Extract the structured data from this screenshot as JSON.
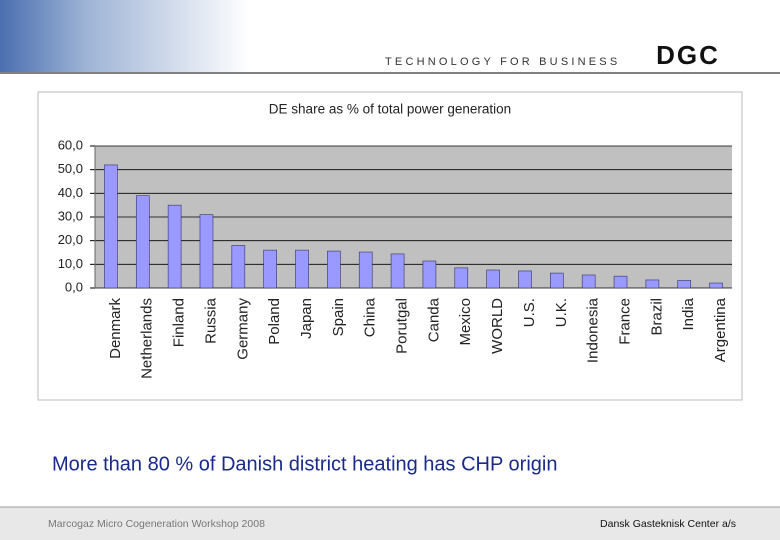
{
  "header": {
    "tagline": "TECHNOLOGY FOR BUSINESS",
    "logo": "DGC"
  },
  "chart_data": {
    "type": "bar",
    "title": "DE share as % of total power generation",
    "categories": [
      "Denmark",
      "Netherlands",
      "Finland",
      "Russia",
      "Germany",
      "Poland",
      "Japan",
      "Spain",
      "China",
      "Porutgal",
      "Canda",
      "Mexico",
      "WORLD",
      "U.S.",
      "U.K.",
      "Indonesia",
      "France",
      "Brazil",
      "India",
      "Argentina"
    ],
    "values": [
      52,
      39,
      35,
      31,
      18,
      16,
      16,
      15.6,
      15.2,
      14.4,
      11.4,
      8.5,
      7.6,
      7.2,
      6.3,
      5.5,
      5,
      3.4,
      3.2,
      2.1
    ],
    "color": "#9999ff",
    "ylim": [
      0,
      60
    ],
    "yticks": [
      {
        "value": 0,
        "label": "0,0"
      },
      {
        "value": 10,
        "label": "10,0"
      },
      {
        "value": 20,
        "label": "20,0"
      },
      {
        "value": 30,
        "label": "30,0"
      },
      {
        "value": 40,
        "label": "40,0"
      },
      {
        "value": 50,
        "label": "50,0"
      },
      {
        "value": 60,
        "label": "60,0"
      }
    ],
    "grid": true
  },
  "caption": "More than 80 % of Danish district heating has CHP origin",
  "footer": {
    "left": "Marcogaz Micro Cogeneration Workshop 2008",
    "right": "Dansk Gasteknisk Center a/s"
  }
}
